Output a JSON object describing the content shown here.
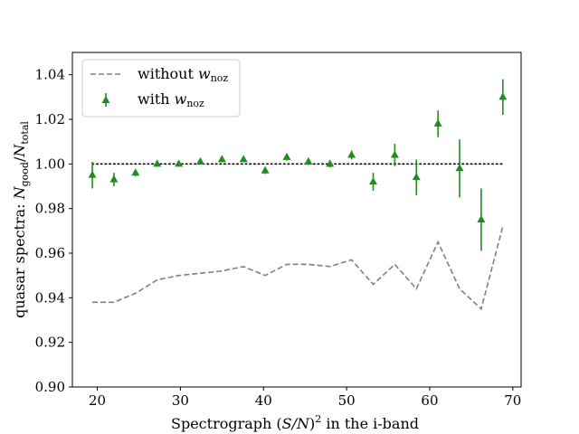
{
  "chart_data": {
    "type": "line",
    "xlabel_parts": {
      "pre": "Spectrograph (",
      "var": "S/N",
      "post": ")",
      "sup": "2",
      "tail": " in the i-band"
    },
    "ylabel_parts": {
      "pre": "quasar spectra: ",
      "num": "N",
      "num_sub": "good",
      "slash": "/",
      "den": "N",
      "den_sub": "total"
    },
    "xlim": [
      17,
      71
    ],
    "ylim": [
      0.9,
      1.05
    ],
    "xticks": [
      20,
      30,
      40,
      50,
      60,
      70
    ],
    "xtick_labels": [
      "20",
      "30",
      "40",
      "50",
      "60",
      "70"
    ],
    "yticks": [
      0.9,
      0.92,
      0.94,
      0.96,
      0.98,
      1.0,
      1.02,
      1.04
    ],
    "ytick_labels": [
      "0.90",
      "0.92",
      "0.94",
      "0.96",
      "0.98",
      "1.00",
      "1.02",
      "1.04"
    ],
    "reference_line": {
      "y": 1.0,
      "style": "dotted",
      "color": "#000000",
      "x_range": [
        19.4,
        68.7
      ]
    },
    "series": [
      {
        "name": "without w_noz",
        "legend_pre": "without ",
        "legend_var": "w",
        "legend_sub": "noz",
        "style": "dashed",
        "color": "#808080",
        "x": [
          19.4,
          22.0,
          24.6,
          27.2,
          29.8,
          32.4,
          35.0,
          37.6,
          40.2,
          42.8,
          45.4,
          48.0,
          50.6,
          53.2,
          55.8,
          58.4,
          61.0,
          63.6,
          66.2,
          68.8
        ],
        "y": [
          0.938,
          0.938,
          0.942,
          0.948,
          0.95,
          0.951,
          0.952,
          0.954,
          0.95,
          0.955,
          0.955,
          0.954,
          0.957,
          0.946,
          0.955,
          0.944,
          0.965,
          0.944,
          0.935,
          0.972
        ]
      },
      {
        "name": "with w_noz",
        "legend_pre": "with ",
        "legend_var": "w",
        "legend_sub": "noz",
        "style": "triangle-markers-with-errorbars",
        "color": "#228B22",
        "x": [
          19.4,
          22.0,
          24.6,
          27.2,
          29.8,
          32.4,
          35.0,
          37.6,
          40.2,
          42.8,
          45.4,
          48.0,
          50.6,
          53.2,
          55.8,
          58.4,
          61.0,
          63.6,
          66.2,
          68.8
        ],
        "y": [
          0.995,
          0.993,
          0.996,
          1.0,
          1.0,
          1.001,
          1.002,
          1.002,
          0.997,
          1.003,
          1.001,
          1.0,
          1.004,
          0.992,
          1.004,
          0.994,
          1.018,
          0.998,
          0.975,
          1.03
        ],
        "err": [
          0.006,
          0.003,
          0.0015,
          0.001,
          0.001,
          0.001,
          0.001,
          0.001,
          0.0015,
          0.0015,
          0.0015,
          0.0015,
          0.002,
          0.004,
          0.005,
          0.008,
          0.006,
          0.013,
          0.014,
          0.008
        ]
      }
    ],
    "legend_position": "upper-left"
  }
}
